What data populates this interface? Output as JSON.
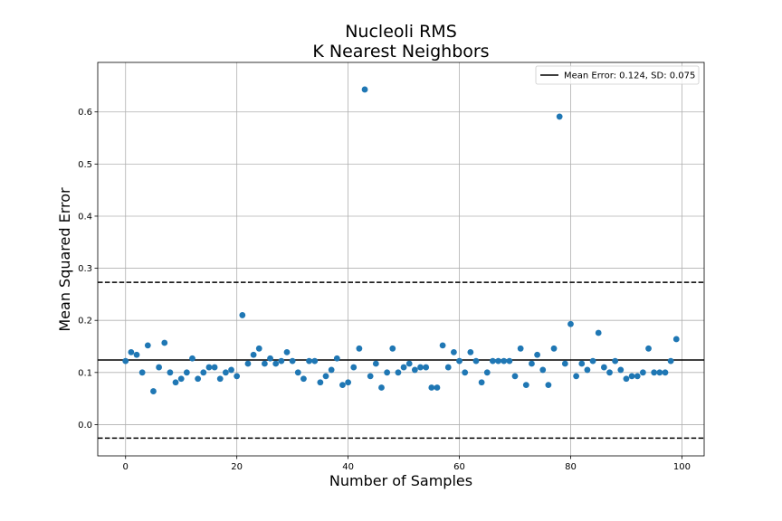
{
  "chart_data": {
    "type": "scatter",
    "title": "Nucleoli RMS",
    "subtitle": "K Nearest Neighbors",
    "xlabel": "Number of Samples",
    "ylabel": "Mean Squared Error",
    "xlim": [
      -5,
      104
    ],
    "ylim": [
      -0.06,
      0.695
    ],
    "xticks": [
      0,
      20,
      40,
      60,
      80,
      100
    ],
    "yticks": [
      0.0,
      0.1,
      0.2,
      0.3,
      0.4,
      0.5,
      0.6
    ],
    "grid": true,
    "legend": {
      "placement": "upper-right",
      "entries": [
        "Mean Error: 0.124, SD: 0.075"
      ]
    },
    "mean_line": 0.124,
    "sd_lines": [
      0.273,
      -0.026
    ],
    "point_color": "#1f77b4",
    "line_color": "#000000",
    "x": [
      0,
      1,
      2,
      3,
      4,
      5,
      6,
      7,
      8,
      9,
      10,
      11,
      12,
      13,
      14,
      15,
      16,
      17,
      18,
      19,
      20,
      21,
      22,
      23,
      24,
      25,
      26,
      27,
      28,
      29,
      30,
      31,
      32,
      33,
      34,
      35,
      36,
      37,
      38,
      39,
      40,
      41,
      42,
      43,
      44,
      45,
      46,
      47,
      48,
      49,
      50,
      51,
      52,
      53,
      54,
      55,
      56,
      57,
      58,
      59,
      60,
      61,
      62,
      63,
      64,
      65,
      66,
      67,
      68,
      69,
      70,
      71,
      72,
      73,
      74,
      75,
      76,
      77,
      78,
      79,
      80,
      81,
      82,
      83,
      84,
      85,
      86,
      87,
      88,
      89,
      90,
      91,
      92,
      93,
      94,
      95,
      96,
      97,
      98,
      99
    ],
    "y": [
      0.122,
      0.139,
      0.134,
      0.1,
      0.152,
      0.064,
      0.11,
      0.157,
      0.1,
      0.081,
      0.088,
      0.1,
      0.127,
      0.088,
      0.1,
      0.11,
      0.11,
      0.088,
      0.1,
      0.105,
      0.093,
      0.21,
      0.117,
      0.134,
      0.146,
      0.117,
      0.127,
      0.117,
      0.122,
      0.139,
      0.122,
      0.1,
      0.088,
      0.122,
      0.122,
      0.081,
      0.093,
      0.105,
      0.127,
      0.076,
      0.081,
      0.11,
      0.146,
      0.643,
      0.093,
      0.117,
      0.071,
      0.1,
      0.146,
      0.1,
      0.11,
      0.117,
      0.105,
      0.11,
      0.11,
      0.071,
      0.071,
      0.152,
      0.11,
      0.139,
      0.122,
      0.1,
      0.139,
      0.122,
      0.081,
      0.1,
      0.122,
      0.122,
      0.122,
      0.122,
      0.093,
      0.146,
      0.076,
      0.117,
      0.134,
      0.105,
      0.076,
      0.146,
      0.591,
      0.117,
      0.193,
      0.093,
      0.117,
      0.105,
      0.122,
      0.176,
      0.11,
      0.1,
      0.122,
      0.105,
      0.088,
      0.093,
      0.093,
      0.1,
      0.146,
      0.1,
      0.1,
      0.1,
      0.122,
      0.164
    ]
  }
}
